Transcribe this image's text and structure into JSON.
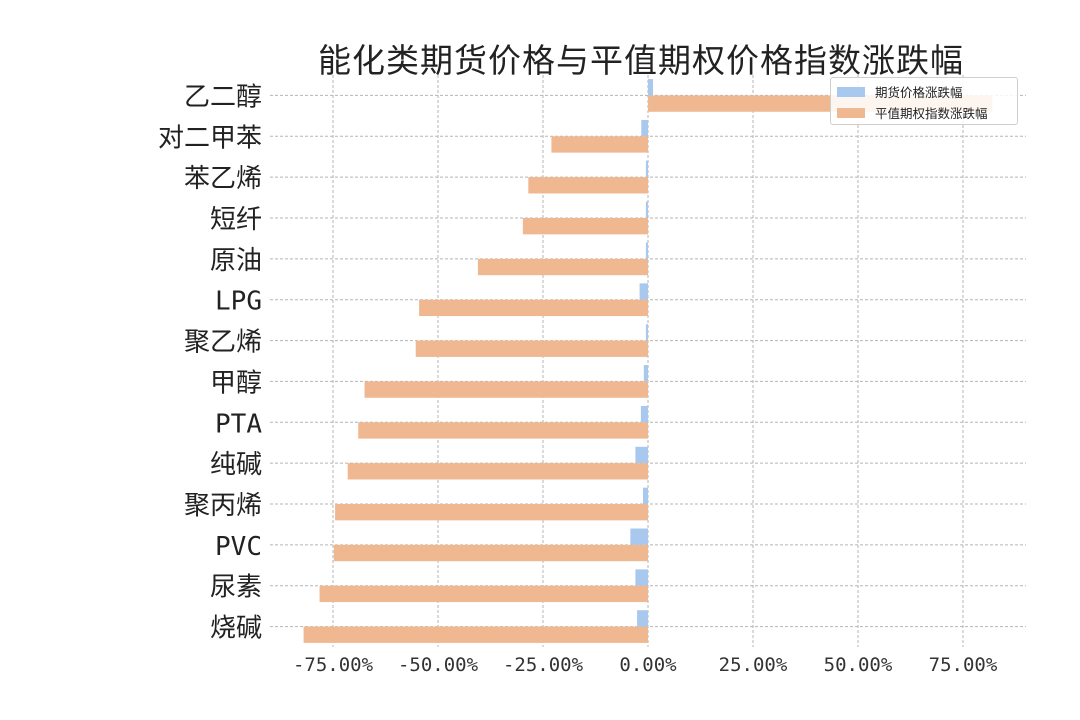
{
  "chart_data": {
    "type": "bar",
    "orientation": "horizontal",
    "title": "能化类期货价格与平值期权价格指数涨跌幅",
    "xlabel": "",
    "ylabel": "",
    "xlim": [
      -0.9,
      0.9
    ],
    "x_tick_values": [
      -0.75,
      -0.5,
      -0.25,
      0.0,
      0.25,
      0.5,
      0.75
    ],
    "x_tick_labels": [
      "-75.00%",
      "-50.00%",
      "-25.00%",
      "0.00%",
      "25.00%",
      "50.00%",
      "75.00%"
    ],
    "grid": true,
    "legend_position": "top-right",
    "categories": [
      "乙二醇",
      "对二甲苯",
      "苯乙烯",
      "短纤",
      "原油",
      "LPG",
      "聚乙烯",
      "甲醇",
      "PTA",
      "纯碱",
      "聚丙烯",
      "PVC",
      "尿素",
      "烧碱"
    ],
    "series": [
      {
        "name": "期货价格涨跌幅",
        "color": "#a8c8ed",
        "values": [
          0.012,
          -0.016,
          -0.005,
          -0.005,
          -0.005,
          -0.02,
          -0.005,
          -0.01,
          -0.017,
          -0.03,
          -0.012,
          -0.042,
          -0.03,
          -0.026
        ]
      },
      {
        "name": "平值期权指数涨跌幅",
        "color": "#f0b891",
        "values": [
          0.82,
          -0.23,
          -0.285,
          -0.298,
          -0.405,
          -0.545,
          -0.553,
          -0.675,
          -0.69,
          -0.715,
          -0.745,
          -0.748,
          -0.782,
          -0.82
        ]
      }
    ]
  }
}
